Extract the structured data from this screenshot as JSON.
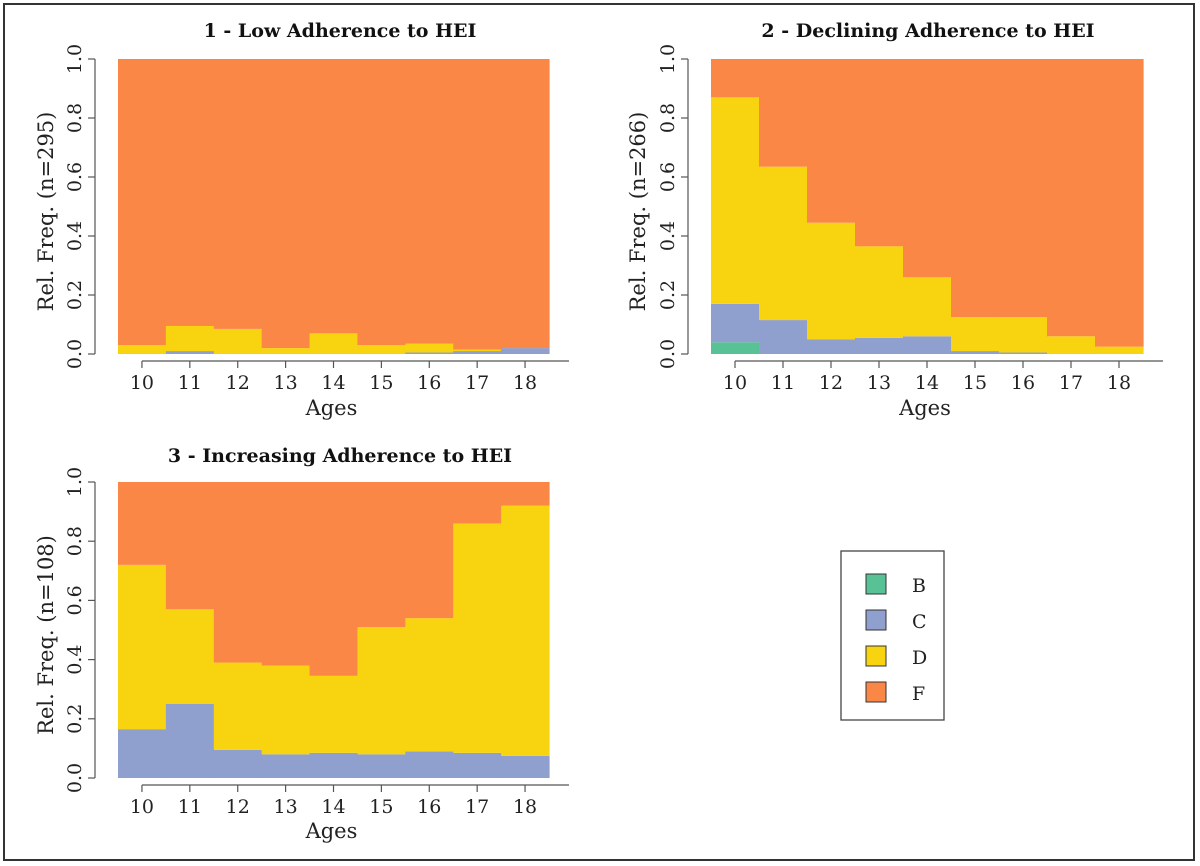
{
  "chart_data": [
    {
      "type": "area",
      "title": "1 - Low Adherence to HEI",
      "xlabel": "Ages",
      "ylabel": "Rel. Freq. (n=295)",
      "categories": [
        "10",
        "11",
        "12",
        "13",
        "14",
        "15",
        "16",
        "17",
        "18"
      ],
      "y_ticks": [
        "0.0",
        "0.2",
        "0.4",
        "0.6",
        "0.8",
        "1.0"
      ],
      "ylim": [
        0,
        1
      ],
      "series": [
        {
          "name": "B",
          "values": [
            0,
            0,
            0,
            0,
            0,
            0,
            0,
            0,
            0
          ]
        },
        {
          "name": "C",
          "values": [
            0,
            0.01,
            0,
            0,
            0,
            0,
            0.005,
            0.01,
            0.02
          ]
        },
        {
          "name": "D",
          "values": [
            0.03,
            0.085,
            0.085,
            0.02,
            0.07,
            0.03,
            0.03,
            0.005,
            0
          ]
        },
        {
          "name": "F",
          "values": [
            0.97,
            0.905,
            0.915,
            0.98,
            0.93,
            0.97,
            0.965,
            0.985,
            0.98
          ]
        }
      ]
    },
    {
      "type": "area",
      "title": "2 - Declining Adherence to HEI",
      "xlabel": "Ages",
      "ylabel": "Rel. Freq. (n=266)",
      "categories": [
        "10",
        "11",
        "12",
        "13",
        "14",
        "15",
        "16",
        "17",
        "18"
      ],
      "y_ticks": [
        "0.0",
        "0.2",
        "0.4",
        "0.6",
        "0.8",
        "1.0"
      ],
      "ylim": [
        0,
        1
      ],
      "series": [
        {
          "name": "B",
          "values": [
            0.04,
            0,
            0,
            0,
            0,
            0,
            0,
            0,
            0
          ]
        },
        {
          "name": "C",
          "values": [
            0.13,
            0.115,
            0.05,
            0.055,
            0.06,
            0.01,
            0.005,
            0,
            0
          ]
        },
        {
          "name": "D",
          "values": [
            0.7,
            0.52,
            0.395,
            0.31,
            0.2,
            0.115,
            0.12,
            0.06,
            0.025
          ]
        },
        {
          "name": "F",
          "values": [
            0.13,
            0.365,
            0.555,
            0.635,
            0.74,
            0.875,
            0.875,
            0.94,
            0.975
          ]
        }
      ]
    },
    {
      "type": "area",
      "title": "3 - Increasing Adherence to HEI",
      "xlabel": "Ages",
      "ylabel": "Rel. Freq. (n=108)",
      "categories": [
        "10",
        "11",
        "12",
        "13",
        "14",
        "15",
        "16",
        "17",
        "18"
      ],
      "y_ticks": [
        "0.0",
        "0.2",
        "0.4",
        "0.6",
        "0.8",
        "1.0"
      ],
      "ylim": [
        0,
        1
      ],
      "series": [
        {
          "name": "B",
          "values": [
            0,
            0,
            0,
            0,
            0,
            0,
            0,
            0,
            0
          ]
        },
        {
          "name": "C",
          "values": [
            0.165,
            0.25,
            0.095,
            0.08,
            0.085,
            0.08,
            0.09,
            0.085,
            0.075
          ]
        },
        {
          "name": "D",
          "values": [
            0.555,
            0.32,
            0.295,
            0.3,
            0.26,
            0.43,
            0.45,
            0.775,
            0.845
          ]
        },
        {
          "name": "F",
          "values": [
            0.28,
            0.43,
            0.61,
            0.62,
            0.655,
            0.49,
            0.46,
            0.14,
            0.08
          ]
        }
      ]
    }
  ],
  "legend": {
    "placement": "bottom-right",
    "entries": [
      {
        "label": "B",
        "color": "#59c196"
      },
      {
        "label": "C",
        "color": "#8f9fce"
      },
      {
        "label": "D",
        "color": "#f7d40f"
      },
      {
        "label": "F",
        "color": "#fb8746"
      }
    ]
  }
}
